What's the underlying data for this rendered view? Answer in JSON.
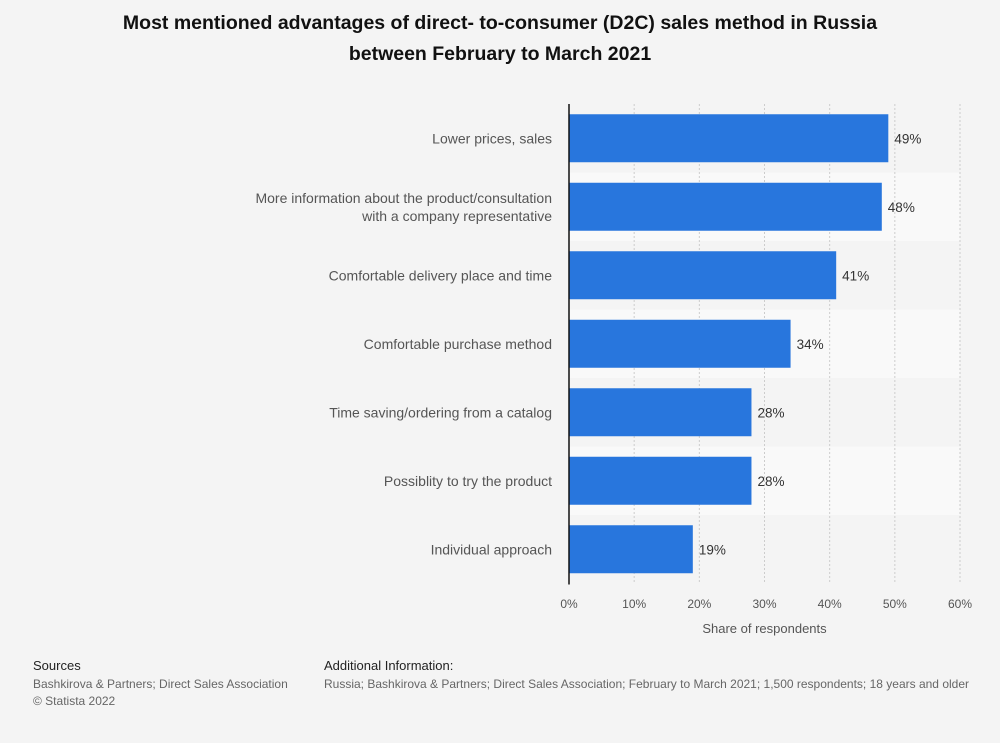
{
  "title_line1": "Most mentioned advantages of direct- to-consumer (D2C) sales method in Russia",
  "title_line2": "between February to March 2021",
  "colors": {
    "bar": "#2876dd",
    "band": "#f9f9f9",
    "grid": "#cccccc",
    "axis": "#111111",
    "label": "#555555",
    "value": "#333333"
  },
  "chart_data": {
    "type": "bar",
    "orientation": "horizontal",
    "categories": [
      [
        "Lower prices, sales"
      ],
      [
        "More information about the product/consultation",
        "with a company representative"
      ],
      [
        "Comfortable delivery place and time"
      ],
      [
        "Comfortable purchase method"
      ],
      [
        "Time saving/ordering from a catalog"
      ],
      [
        "Possiblity to try the product"
      ],
      [
        "Individual approach"
      ]
    ],
    "values": [
      49,
      48,
      41,
      34,
      28,
      28,
      19
    ],
    "value_labels": [
      "49%",
      "48%",
      "41%",
      "34%",
      "28%",
      "28%",
      "19%"
    ],
    "xlim": [
      0,
      60
    ],
    "ticks": [
      0,
      10,
      20,
      30,
      40,
      50,
      60
    ],
    "tick_labels": [
      "0%",
      "10%",
      "20%",
      "30%",
      "40%",
      "50%",
      "60%"
    ],
    "xlabel": "Share of respondents",
    "ylabel": "",
    "grid": true,
    "legend": "none"
  },
  "footer": {
    "sources_heading": "Sources",
    "sources_text": "Bashkirova & Partners; Direct Sales Association",
    "copyright": "© Statista 2022",
    "additional_heading": "Additional Information:",
    "additional_text": "Russia; Bashkirova & Partners; Direct Sales Association; February to March 2021; 1,500 respondents; 18 years and older"
  }
}
